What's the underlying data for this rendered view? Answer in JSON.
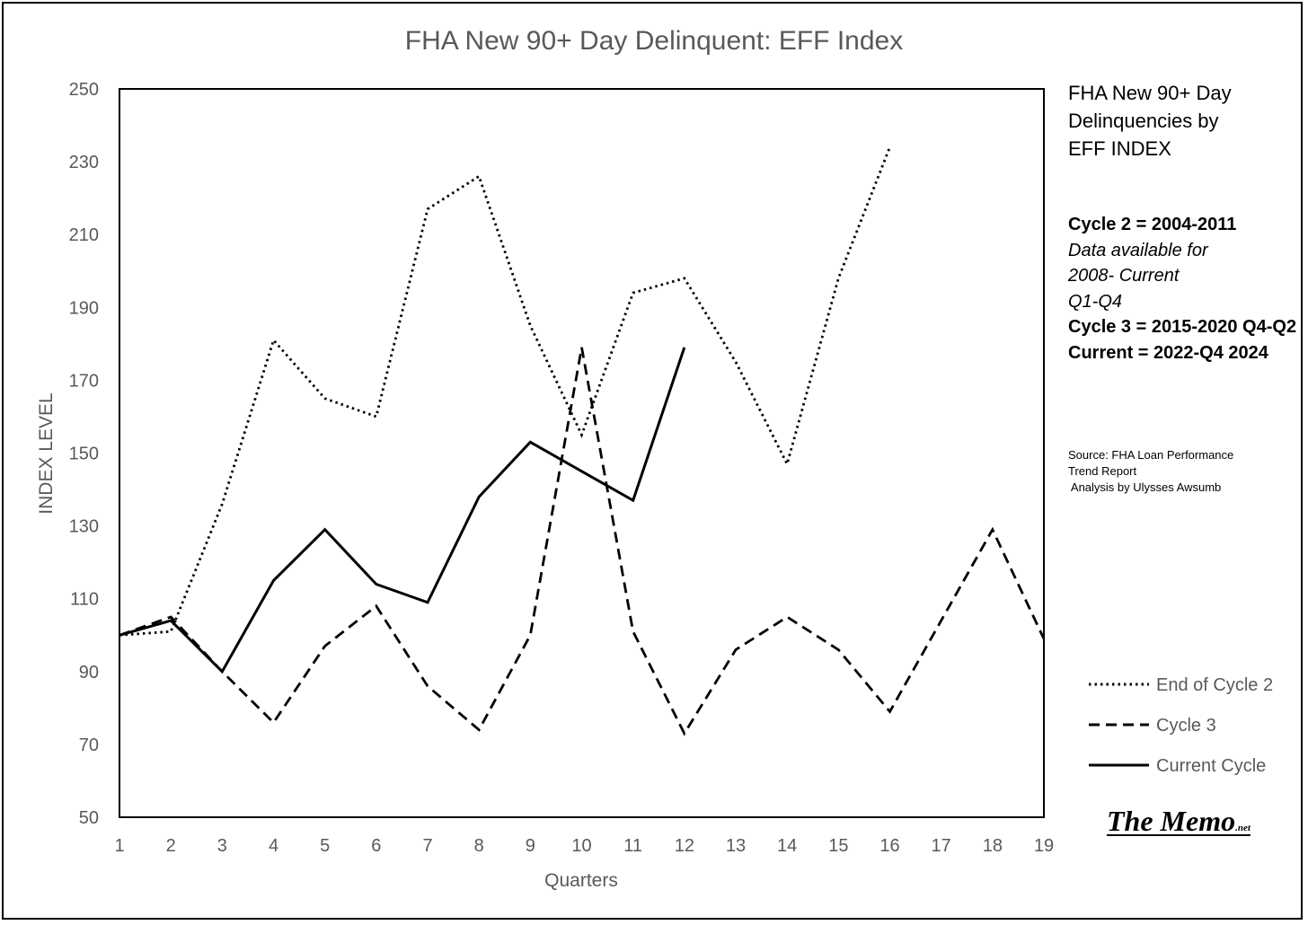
{
  "chart_data": {
    "type": "line",
    "title": "FHA  New 90+ Day Delinquent: EFF Index",
    "xlabel": "Quarters",
    "ylabel": "INDEX LEVEL",
    "x": [
      1,
      2,
      3,
      4,
      5,
      6,
      7,
      8,
      9,
      10,
      11,
      12,
      13,
      14,
      15,
      16,
      17,
      18,
      19
    ],
    "xticks": [
      "1",
      "2",
      "3",
      "4",
      "5",
      "6",
      "7",
      "8",
      "9",
      "10",
      "11",
      "12",
      "13",
      "14",
      "15",
      "16",
      "17",
      "18",
      "19"
    ],
    "ylim": [
      50,
      250
    ],
    "yticks": [
      "250",
      "230",
      "210",
      "190",
      "170",
      "150",
      "130",
      "110",
      "90",
      "70",
      "50"
    ],
    "ytick_values": [
      250,
      230,
      210,
      190,
      170,
      150,
      130,
      110,
      90,
      70,
      50
    ],
    "grid": false,
    "legend_position": "bottom-right",
    "series": [
      {
        "name": "End of Cycle 2",
        "style": "dotted",
        "values": [
          100,
          101,
          136,
          181,
          165,
          160,
          217,
          226,
          185,
          155,
          194,
          198,
          175,
          147,
          198,
          234,
          null,
          null,
          null
        ]
      },
      {
        "name": "Cycle 3",
        "style": "dashed",
        "values": [
          100,
          105,
          90,
          76,
          97,
          108,
          86,
          74,
          100,
          179,
          101,
          73,
          96,
          105,
          96,
          79,
          104,
          129,
          99
        ]
      },
      {
        "name": "Current Cycle",
        "style": "solid",
        "values": [
          100,
          104,
          90,
          115,
          129,
          114,
          109,
          138,
          153,
          145,
          137,
          179,
          null,
          null,
          null,
          null,
          null,
          null,
          null
        ]
      }
    ]
  },
  "side_panel": {
    "heading_lines": [
      "FHA New 90+ Day",
      "Delinquencies by",
      "EFF INDEX"
    ],
    "cycle2": "Cycle 2 = 2004-2011",
    "cycle2_note": [
      "Data available for",
      "2008- Current",
      "Q1-Q4"
    ],
    "cycle3": "Cycle 3 = 2015-2020 Q4-Q2",
    "current": "Current = 2022-Q4 2024",
    "source": "Source: FHA Loan Performance\nTrend Report\n Analysis by Ulysses Awsumb"
  },
  "logo": {
    "text": "The Memo",
    "suffix": ".net"
  },
  "colors": {
    "series": "#000000",
    "text": "#595959",
    "axis": "#000000"
  }
}
